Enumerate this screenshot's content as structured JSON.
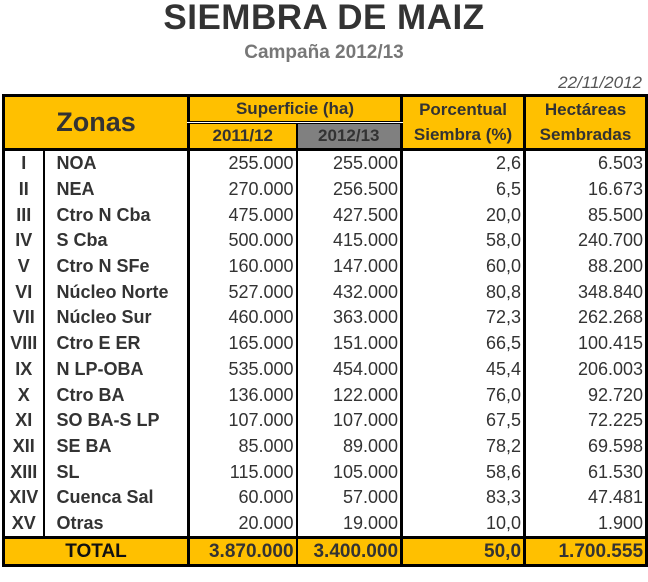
{
  "title": "SIEMBRA DE MAIZ",
  "subtitle": "Campaña 2012/13",
  "date": "22/11/2012",
  "colors": {
    "header_bg": "#FFC000",
    "current_season_bg": "#808080"
  },
  "headers": {
    "zonas": "Zonas",
    "superficie": "Superficie (ha)",
    "season_prev": "2011/12",
    "season_curr": "2012/13",
    "porcentual_1": "Porcentual",
    "porcentual_2": "Siembra (%)",
    "hectareas_1": "Hectáreas",
    "hectareas_2": "Sembradas"
  },
  "rows": [
    {
      "roman": "I",
      "zona": "NOA",
      "sup_2011": "255.000",
      "sup_2012": "255.000",
      "pct": "2,6",
      "ha": "6.503"
    },
    {
      "roman": "II",
      "zona": "NEA",
      "sup_2011": "270.000",
      "sup_2012": "256.500",
      "pct": "6,5",
      "ha": "16.673"
    },
    {
      "roman": "III",
      "zona": "Ctro N Cba",
      "sup_2011": "475.000",
      "sup_2012": "427.500",
      "pct": "20,0",
      "ha": "85.500"
    },
    {
      "roman": "IV",
      "zona": "S Cba",
      "sup_2011": "500.000",
      "sup_2012": "415.000",
      "pct": "58,0",
      "ha": "240.700"
    },
    {
      "roman": "V",
      "zona": "Ctro N SFe",
      "sup_2011": "160.000",
      "sup_2012": "147.000",
      "pct": "60,0",
      "ha": "88.200"
    },
    {
      "roman": "VI",
      "zona": "Núcleo Norte",
      "sup_2011": "527.000",
      "sup_2012": "432.000",
      "pct": "80,8",
      "ha": "348.840"
    },
    {
      "roman": "VII",
      "zona": "Núcleo Sur",
      "sup_2011": "460.000",
      "sup_2012": "363.000",
      "pct": "72,3",
      "ha": "262.268"
    },
    {
      "roman": "VIII",
      "zona": "Ctro E ER",
      "sup_2011": "165.000",
      "sup_2012": "151.000",
      "pct": "66,5",
      "ha": "100.415"
    },
    {
      "roman": "IX",
      "zona": "N LP-OBA",
      "sup_2011": "535.000",
      "sup_2012": "454.000",
      "pct": "45,4",
      "ha": "206.003"
    },
    {
      "roman": "X",
      "zona": "Ctro BA",
      "sup_2011": "136.000",
      "sup_2012": "122.000",
      "pct": "76,0",
      "ha": "92.720"
    },
    {
      "roman": "XI",
      "zona": "SO BA-S LP",
      "sup_2011": "107.000",
      "sup_2012": "107.000",
      "pct": "67,5",
      "ha": "72.225"
    },
    {
      "roman": "XII",
      "zona": "SE BA",
      "sup_2011": "85.000",
      "sup_2012": "89.000",
      "pct": "78,2",
      "ha": "69.598"
    },
    {
      "roman": "XIII",
      "zona": "SL",
      "sup_2011": "115.000",
      "sup_2012": "105.000",
      "pct": "58,6",
      "ha": "61.530"
    },
    {
      "roman": "XIV",
      "zona": "Cuenca Sal",
      "sup_2011": "60.000",
      "sup_2012": "57.000",
      "pct": "83,3",
      "ha": "47.481"
    },
    {
      "roman": "XV",
      "zona": "Otras",
      "sup_2011": "20.000",
      "sup_2012": "19.000",
      "pct": "10,0",
      "ha": "1.900"
    }
  ],
  "total": {
    "label": "TOTAL",
    "sup_2011": "3.870.000",
    "sup_2012": "3.400.000",
    "pct": "50,0",
    "ha": "1.700.555"
  }
}
